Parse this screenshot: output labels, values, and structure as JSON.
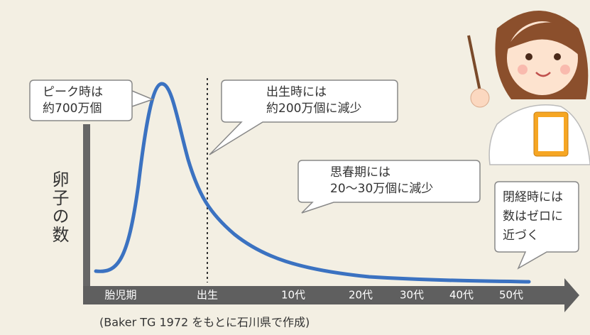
{
  "callouts": [
    {
      "lines": [
        "ピーク時は",
        "約700万個"
      ]
    },
    {
      "lines": [
        "出生時には",
        "約200万個に減少"
      ]
    },
    {
      "lines": [
        "思春期には",
        "20〜30万個に減少"
      ]
    },
    {
      "lines": [
        "閉経時には",
        "数はゼロに",
        "近づく"
      ]
    }
  ],
  "y_axis_label": "卵子の数",
  "x_axis_labels": [
    "胎児期",
    "出生",
    "10代",
    "20代",
    "30代",
    "40代",
    "50代"
  ],
  "caption": "(Baker TG 1972 をもとに石川県で作成)"
}
